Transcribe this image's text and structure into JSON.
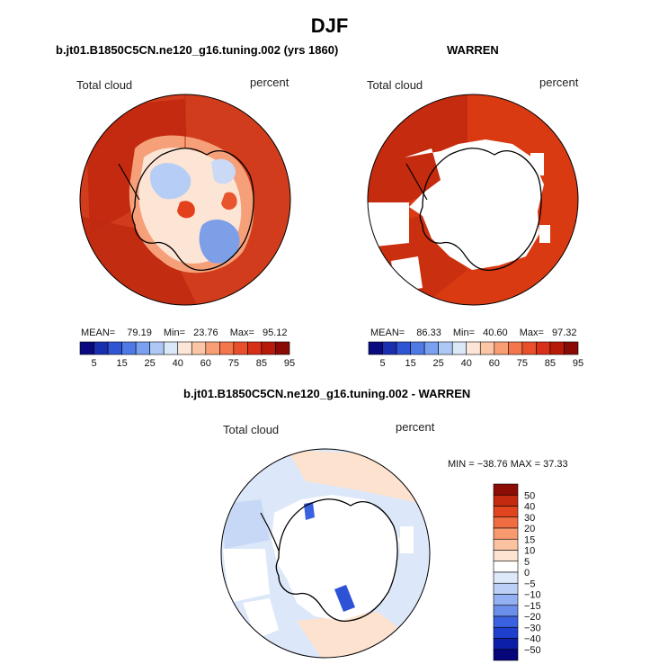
{
  "main_title": "DJF",
  "panels": {
    "model": {
      "title": "b.jt01.B1850C5CN.ne120_g16.tuning.002 (yrs 1860)",
      "left_label": "Total cloud",
      "right_label": "percent",
      "stats": {
        "mean_label": "MEAN=",
        "mean": "79.19",
        "min_label": "Min=",
        "min": "23.76",
        "max_label": "Max=",
        "max": "95.12"
      }
    },
    "obs": {
      "title": "WARREN",
      "left_label": "Total cloud",
      "right_label": "percent",
      "stats": {
        "mean_label": "MEAN=",
        "mean": "86.33",
        "min_label": "Min=",
        "min": "40.60",
        "max_label": "Max=",
        "max": "97.32"
      }
    },
    "diff": {
      "title": "b.jt01.B1850C5CN.ne120_g16.tuning.002 - WARREN",
      "left_label": "Total cloud",
      "right_label": "percent",
      "minmax": "MIN = −38.76  MAX =  37.33"
    }
  },
  "colors": {
    "abs_scale": [
      "#0a0a80",
      "#1a2fb0",
      "#2f55d4",
      "#4f7ae6",
      "#7aa0f0",
      "#aec8f6",
      "#dbe8f8",
      "#fde6d8",
      "#fcc6a6",
      "#f99d74",
      "#f3764c",
      "#e8502c",
      "#d83018",
      "#b81a0a",
      "#8a0a05"
    ],
    "diff_scale": [
      "#06067a",
      "#0b1fa8",
      "#1f3fce",
      "#3a62e0",
      "#6a8eea",
      "#93b1f2",
      "#bcd0f6",
      "#dde8f8",
      "#ffffff",
      "#fde4d2",
      "#fbc2a2",
      "#f79a70",
      "#f06d44",
      "#e04520",
      "#c42a10",
      "#8c0c06"
    ],
    "ocean_model": "#d13d1c",
    "ocean_obs": "#d93a12",
    "ocean_diff": "#dce8f9"
  },
  "chart_data": [
    {
      "type": "heatmap",
      "title": "b.jt01.B1850C5CN.ne120_g16.tuning.002 (yrs 1860)",
      "variable": "Total cloud",
      "units": "percent",
      "projection": "south polar stereographic",
      "colorbar": {
        "orientation": "horizontal",
        "ticks": [
          "5",
          "15",
          "25",
          "40",
          "60",
          "75",
          "85",
          "95"
        ]
      },
      "mean": 79.19,
      "min": 23.76,
      "max": 95.12
    },
    {
      "type": "heatmap",
      "title": "WARREN",
      "variable": "Total cloud",
      "units": "percent",
      "projection": "south polar stereographic",
      "colorbar": {
        "orientation": "horizontal",
        "ticks": [
          "5",
          "15",
          "25",
          "40",
          "60",
          "75",
          "85",
          "95"
        ]
      },
      "mean": 86.33,
      "min": 40.6,
      "max": 97.32
    },
    {
      "type": "heatmap",
      "title": "b.jt01.B1850C5CN.ne120_g16.tuning.002 - WARREN",
      "variable": "Total cloud",
      "units": "percent",
      "projection": "south polar stereographic",
      "colorbar": {
        "orientation": "vertical",
        "ticks": [
          "50",
          "40",
          "30",
          "20",
          "15",
          "10",
          "5",
          "0",
          "−5",
          "−10",
          "−15",
          "−20",
          "−30",
          "−40",
          "−50"
        ]
      },
      "min": -38.76,
      "max": 37.33
    }
  ]
}
